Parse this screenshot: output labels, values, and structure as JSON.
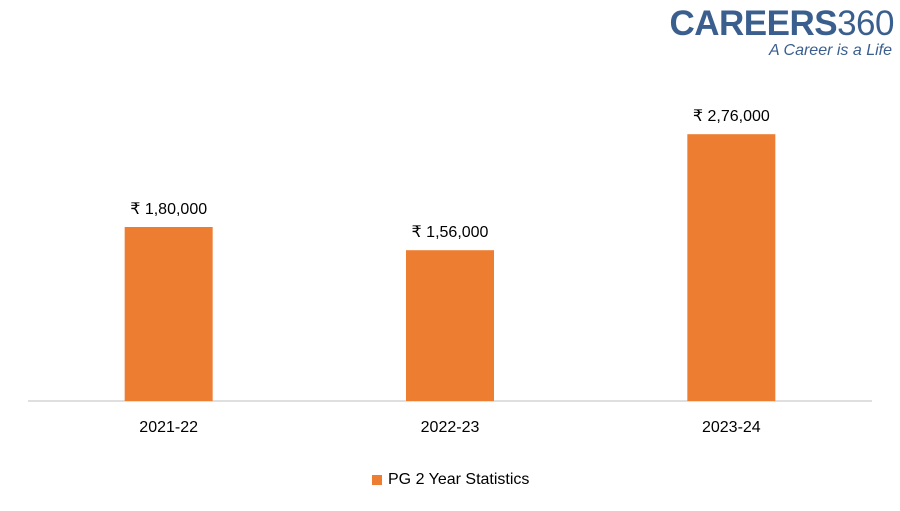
{
  "logo": {
    "brand_bold": "CAREERS",
    "brand_light": "360",
    "tagline": "A Career is a Life"
  },
  "chart_data": {
    "type": "bar",
    "categories": [
      "2021-22",
      "2022-23",
      "2023-24"
    ],
    "series": [
      {
        "name": "PG 2 Year Statistics",
        "values": [
          180000,
          156000,
          276000
        ],
        "color": "#ed7d31"
      }
    ],
    "data_labels": [
      "₹ 1,80,000",
      "₹ 1,56,000",
      "₹ 2,76,000"
    ],
    "ylim": [
      0,
      300000
    ],
    "grid": false,
    "legend_position": "bottom",
    "axis_color": "#bfbfbf"
  }
}
